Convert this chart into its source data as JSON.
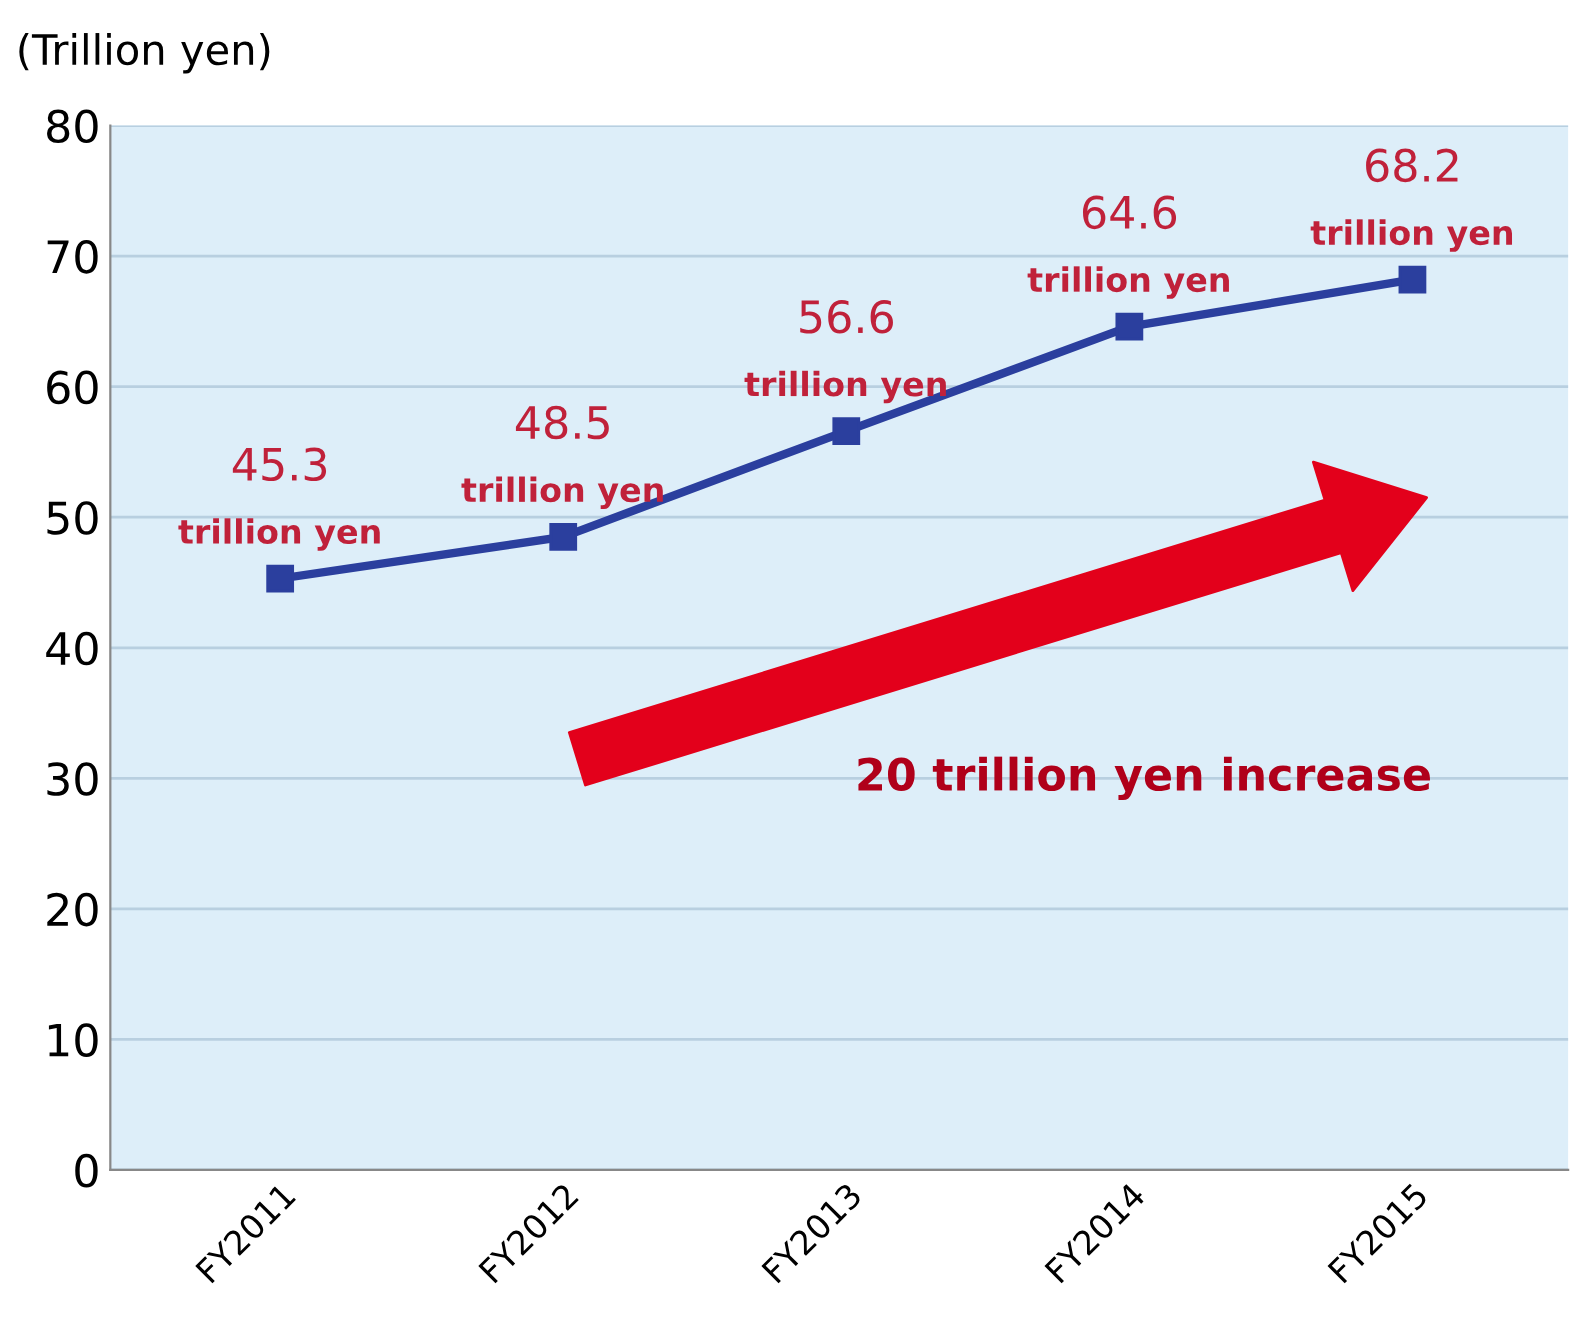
{
  "chart_data": {
    "type": "line",
    "ylabel": "(Trillion yen)",
    "categories": [
      "FY2011",
      "FY2012",
      "FY2013",
      "FY2014",
      "FY2015"
    ],
    "series": [
      {
        "color": "#2b3f9e",
        "values": [
          45.3,
          48.5,
          56.6,
          64.6,
          68.2
        ],
        "value_labels": [
          "45.3\ntrillion yen",
          "48.5\ntrillion yen",
          "56.6\ntrillion yen",
          "64.6\ntrillion yen",
          "68.2\ntrillion yen"
        ]
      }
    ],
    "ylim": [
      0,
      80
    ],
    "yticks": [
      0,
      10,
      20,
      30,
      40,
      50,
      60,
      70,
      80
    ],
    "grid": "y",
    "marker": "square",
    "line_style": "solid",
    "annotations": [
      "20 trillion yen increase"
    ]
  }
}
